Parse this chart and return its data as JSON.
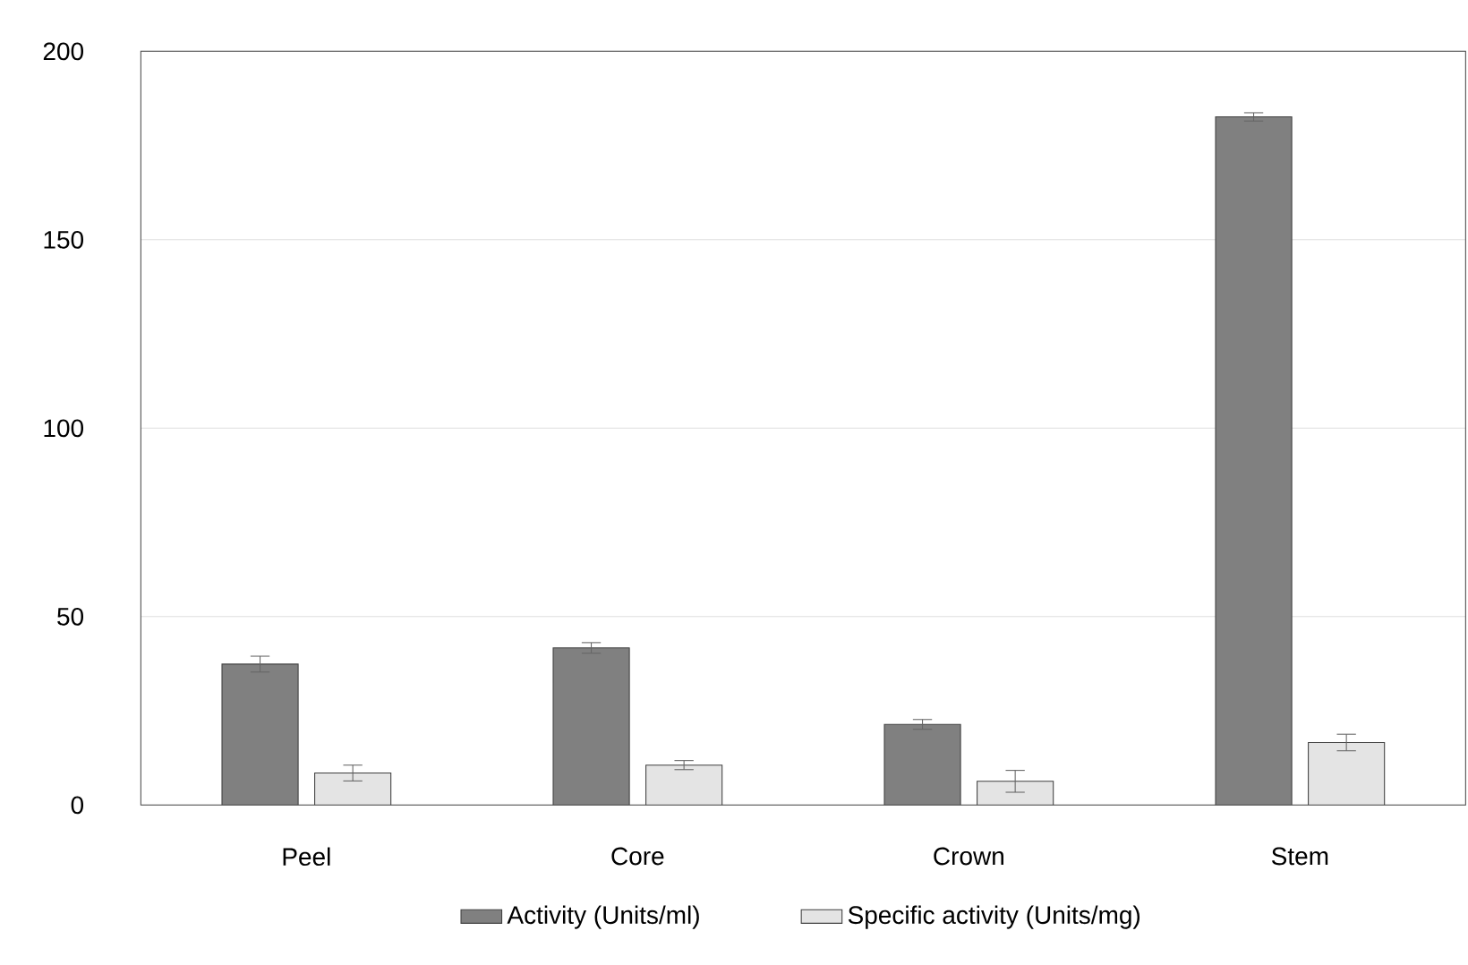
{
  "chart_data": {
    "type": "bar",
    "categories": [
      "Peel",
      "Core",
      "Crown",
      "Stem"
    ],
    "series": [
      {
        "name": "Activity (Units/ml)",
        "color": "#808080",
        "values": [
          37.4,
          41.7,
          21.4,
          182.6
        ],
        "errors": [
          2.1,
          1.4,
          1.3,
          1.1
        ]
      },
      {
        "name": "Specific activity (Units/mg)",
        "color": "#e4e4e4",
        "values": [
          8.5,
          10.6,
          6.3,
          16.6
        ],
        "errors": [
          2.1,
          1.2,
          2.9,
          2.2
        ]
      }
    ],
    "ylim": [
      0,
      200
    ],
    "yticks": [
      0,
      50,
      100,
      150,
      200
    ],
    "grid": "y",
    "legend": "bottom"
  }
}
